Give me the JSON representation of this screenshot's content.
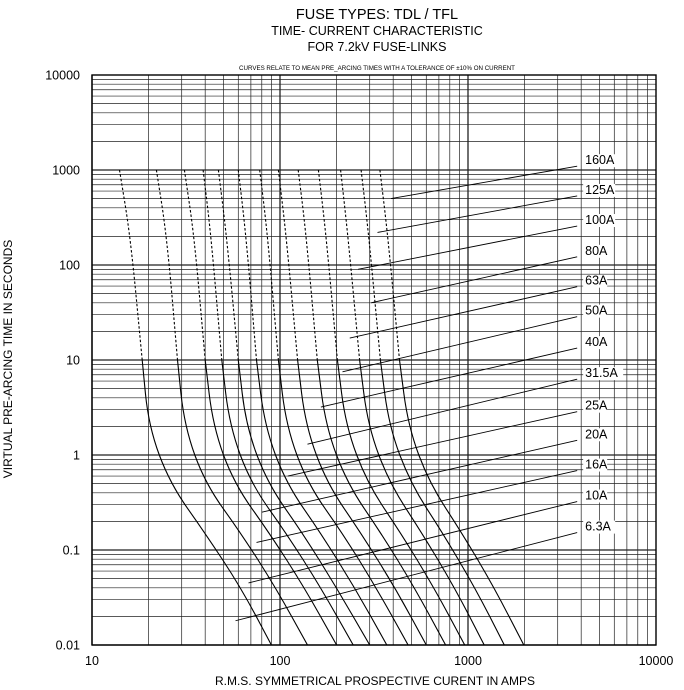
{
  "chart_data": {
    "type": "line",
    "title": "FUSE TYPES:  TDL / TFL",
    "subtitle": [
      "TIME- CURRENT CHARACTERISTIC",
      "FOR 7.2kV FUSE-LINKS"
    ],
    "annotation": "CURVES RELATE TO MEAN PRE_ARCING TIMES WITH A TOLERANCE OF  ±10% ON CURRENT",
    "xlabel": "R.M.S. SYMMETRICAL PROSPECTIVE CURENT IN AMPS",
    "ylabel": "VIRTUAL PRE-ARCING TIME IN SECONDS",
    "xscale": "log",
    "yscale": "log",
    "xlim": [
      10,
      10000
    ],
    "ylim": [
      0.01,
      10000
    ],
    "x_ticks": [
      "10",
      "100",
      "1000",
      "10000"
    ],
    "y_ticks": [
      "10000",
      "1000",
      "100",
      "10",
      "1",
      "0.1",
      "0.01"
    ],
    "grid": true,
    "dashed_region_note": "upper curve segments drawn dashed",
    "series": [
      {
        "name": "6.3A",
        "points": [
          [
            14,
            1000
          ],
          [
            16,
            200
          ],
          [
            18.5,
            10
          ],
          [
            20,
            2
          ],
          [
            26,
            0.5
          ],
          [
            40,
            0.15
          ],
          [
            62,
            0.04
          ],
          [
            90,
            0.01
          ]
        ]
      },
      {
        "name": "10A",
        "points": [
          [
            22,
            1000
          ],
          [
            25,
            200
          ],
          [
            28.5,
            10
          ],
          [
            31,
            2
          ],
          [
            40,
            0.5
          ],
          [
            62,
            0.15
          ],
          [
            95,
            0.04
          ],
          [
            140,
            0.01
          ]
        ]
      },
      {
        "name": "16A",
        "points": [
          [
            31,
            1000
          ],
          [
            35,
            200
          ],
          [
            40,
            10
          ],
          [
            44,
            2
          ],
          [
            57,
            0.5
          ],
          [
            88,
            0.15
          ],
          [
            135,
            0.04
          ],
          [
            200,
            0.01
          ]
        ]
      },
      {
        "name": "20A",
        "points": [
          [
            39,
            1000
          ],
          [
            43,
            200
          ],
          [
            49,
            10
          ],
          [
            54,
            2
          ],
          [
            70,
            0.5
          ],
          [
            108,
            0.15
          ],
          [
            165,
            0.04
          ],
          [
            245,
            0.01
          ]
        ]
      },
      {
        "name": "25A",
        "points": [
          [
            47,
            1000
          ],
          [
            52,
            200
          ],
          [
            60,
            10
          ],
          [
            66,
            2
          ],
          [
            86,
            0.5
          ],
          [
            132,
            0.15
          ],
          [
            200,
            0.04
          ],
          [
            300,
            0.01
          ]
        ]
      },
      {
        "name": "31.5A",
        "points": [
          [
            60,
            1000
          ],
          [
            66,
            200
          ],
          [
            75,
            10
          ],
          [
            83,
            2
          ],
          [
            108,
            0.5
          ],
          [
            165,
            0.15
          ],
          [
            250,
            0.04
          ],
          [
            370,
            0.01
          ]
        ]
      },
      {
        "name": "40A",
        "points": [
          [
            78,
            1000
          ],
          [
            86,
            200
          ],
          [
            98,
            10
          ],
          [
            108,
            2
          ],
          [
            140,
            0.5
          ],
          [
            215,
            0.15
          ],
          [
            325,
            0.04
          ],
          [
            480,
            0.01
          ]
        ]
      },
      {
        "name": "50A",
        "points": [
          [
            98,
            1000
          ],
          [
            108,
            200
          ],
          [
            124,
            10
          ],
          [
            137,
            2
          ],
          [
            178,
            0.5
          ],
          [
            270,
            0.15
          ],
          [
            410,
            0.04
          ],
          [
            600,
            0.01
          ]
        ]
      },
      {
        "name": "63A",
        "points": [
          [
            125,
            1000
          ],
          [
            138,
            200
          ],
          [
            158,
            10
          ],
          [
            175,
            2
          ],
          [
            228,
            0.5
          ],
          [
            345,
            0.15
          ],
          [
            520,
            0.04
          ],
          [
            760,
            0.01
          ]
        ]
      },
      {
        "name": "80A",
        "points": [
          [
            160,
            1000
          ],
          [
            176,
            200
          ],
          [
            202,
            10
          ],
          [
            224,
            2
          ],
          [
            292,
            0.5
          ],
          [
            440,
            0.15
          ],
          [
            660,
            0.04
          ],
          [
            960,
            0.01
          ]
        ]
      },
      {
        "name": "100A",
        "points": [
          [
            210,
            1000
          ],
          [
            230,
            200
          ],
          [
            265,
            10
          ],
          [
            294,
            2
          ],
          [
            383,
            0.5
          ],
          [
            570,
            0.15
          ],
          [
            850,
            0.04
          ],
          [
            1220,
            0.01
          ]
        ]
      },
      {
        "name": "125A",
        "points": [
          [
            270,
            1000
          ],
          [
            297,
            200
          ],
          [
            342,
            10
          ],
          [
            380,
            2
          ],
          [
            495,
            0.5
          ],
          [
            735,
            0.15
          ],
          [
            1090,
            0.04
          ],
          [
            1560,
            0.01
          ]
        ]
      },
      {
        "name": "160A",
        "points": [
          [
            340,
            1000
          ],
          [
            375,
            200
          ],
          [
            432,
            10
          ],
          [
            480,
            2
          ],
          [
            625,
            0.5
          ],
          [
            930,
            0.15
          ],
          [
            1380,
            0.04
          ],
          [
            1980,
            0.01
          ]
        ]
      }
    ],
    "rating_labels": [
      {
        "text": "160A",
        "x": 4200,
        "y": 1150,
        "leader_to": [
          390,
          500
        ]
      },
      {
        "text": "125A",
        "x": 4200,
        "y": 560,
        "leader_to": [
          330,
          220
        ]
      },
      {
        "text": "100A",
        "x": 4200,
        "y": 270,
        "leader_to": [
          260,
          90
        ]
      },
      {
        "text": "80A",
        "x": 4200,
        "y": 128,
        "leader_to": [
          305,
          40
        ]
      },
      {
        "text": "63A",
        "x": 4200,
        "y": 62,
        "leader_to": [
          235,
          17
        ]
      },
      {
        "text": "50A",
        "x": 4200,
        "y": 30,
        "leader_to": [
          215,
          7.5
        ]
      },
      {
        "text": "40A",
        "x": 4200,
        "y": 14,
        "leader_to": [
          165,
          3.2
        ]
      },
      {
        "text": "31.5A",
        "x": 4200,
        "y": 6.6,
        "leader_to": [
          140,
          1.3
        ]
      },
      {
        "text": "25A",
        "x": 4200,
        "y": 3.0,
        "leader_to": [
          110,
          0.6
        ]
      },
      {
        "text": "20A",
        "x": 4200,
        "y": 1.5,
        "leader_to": [
          80,
          0.25
        ]
      },
      {
        "text": "16A",
        "x": 4200,
        "y": 0.72,
        "leader_to": [
          75,
          0.12
        ]
      },
      {
        "text": "10A",
        "x": 4200,
        "y": 0.34,
        "leader_to": [
          68,
          0.045
        ]
      },
      {
        "text": "6.3A",
        "x": 4200,
        "y": 0.16,
        "leader_to": [
          58,
          0.018
        ]
      }
    ]
  }
}
